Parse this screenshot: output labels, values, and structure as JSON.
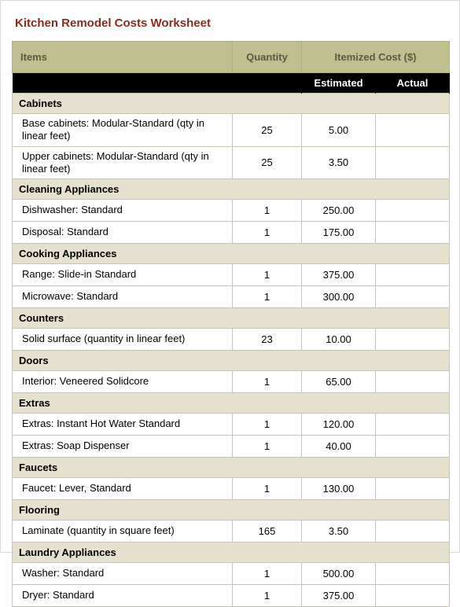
{
  "title": "Kitchen Remodel Costs Worksheet",
  "headers": {
    "items": "Items",
    "quantity": "Quantity",
    "itemized": "Itemized Cost ($)",
    "estimated": "Estimated",
    "actual": "Actual"
  },
  "colors": {
    "title": "#8a2b1a",
    "header_bg": "#bfbf8f",
    "header_fg": "#5a5a42",
    "black_bg": "#000000",
    "black_fg": "#ffffff",
    "section_bg": "#e6e1cf",
    "row_bg": "#ffffff",
    "border": "#c9c4b0"
  },
  "col_widths": [
    "280px",
    "88px",
    "94px",
    "94px"
  ],
  "sections": [
    {
      "name": "Cabinets",
      "rows": [
        {
          "item": "Base cabinets: Modular-Standard (qty in linear feet)",
          "qty": "25",
          "est": "5.00",
          "act": "",
          "tall": true
        },
        {
          "item": "Upper cabinets: Modular-Standard (qty in linear feet)",
          "qty": "25",
          "est": "3.50",
          "act": "",
          "tall": true
        }
      ]
    },
    {
      "name": "Cleaning Appliances",
      "rows": [
        {
          "item": "Dishwasher: Standard",
          "qty": "1",
          "est": "250.00",
          "act": ""
        },
        {
          "item": "Disposal: Standard",
          "qty": "1",
          "est": "175.00",
          "act": ""
        }
      ]
    },
    {
      "name": "Cooking Appliances",
      "rows": [
        {
          "item": "Range: Slide-in Standard",
          "qty": "1",
          "est": "375.00",
          "act": ""
        },
        {
          "item": "Microwave: Standard",
          "qty": "1",
          "est": "300.00",
          "act": ""
        }
      ]
    },
    {
      "name": "Counters",
      "rows": [
        {
          "item": "Solid surface (quantity in linear feet)",
          "qty": "23",
          "est": "10.00",
          "act": ""
        }
      ]
    },
    {
      "name": "Doors",
      "rows": [
        {
          "item": "Interior: Veneered Solidcore",
          "qty": "1",
          "est": "65.00",
          "act": ""
        }
      ]
    },
    {
      "name": "Extras",
      "rows": [
        {
          "item": "Extras: Instant Hot Water Standard",
          "qty": "1",
          "est": "120.00",
          "act": ""
        },
        {
          "item": "Extras: Soap Dispenser",
          "qty": "1",
          "est": "40.00",
          "act": ""
        }
      ]
    },
    {
      "name": "Faucets",
      "rows": [
        {
          "item": "Faucet: Lever, Standard",
          "qty": "1",
          "est": "130.00",
          "act": ""
        }
      ]
    },
    {
      "name": "Flooring",
      "rows": [
        {
          "item": "Laminate (quantity in square feet)",
          "qty": "165",
          "est": "3.50",
          "act": ""
        }
      ]
    },
    {
      "name": "Laundry Appliances",
      "rows": [
        {
          "item": "Washer: Standard",
          "qty": "1",
          "est": "500.00",
          "act": ""
        },
        {
          "item": "Dryer: Standard",
          "qty": "1",
          "est": "375.00",
          "act": ""
        }
      ]
    }
  ]
}
